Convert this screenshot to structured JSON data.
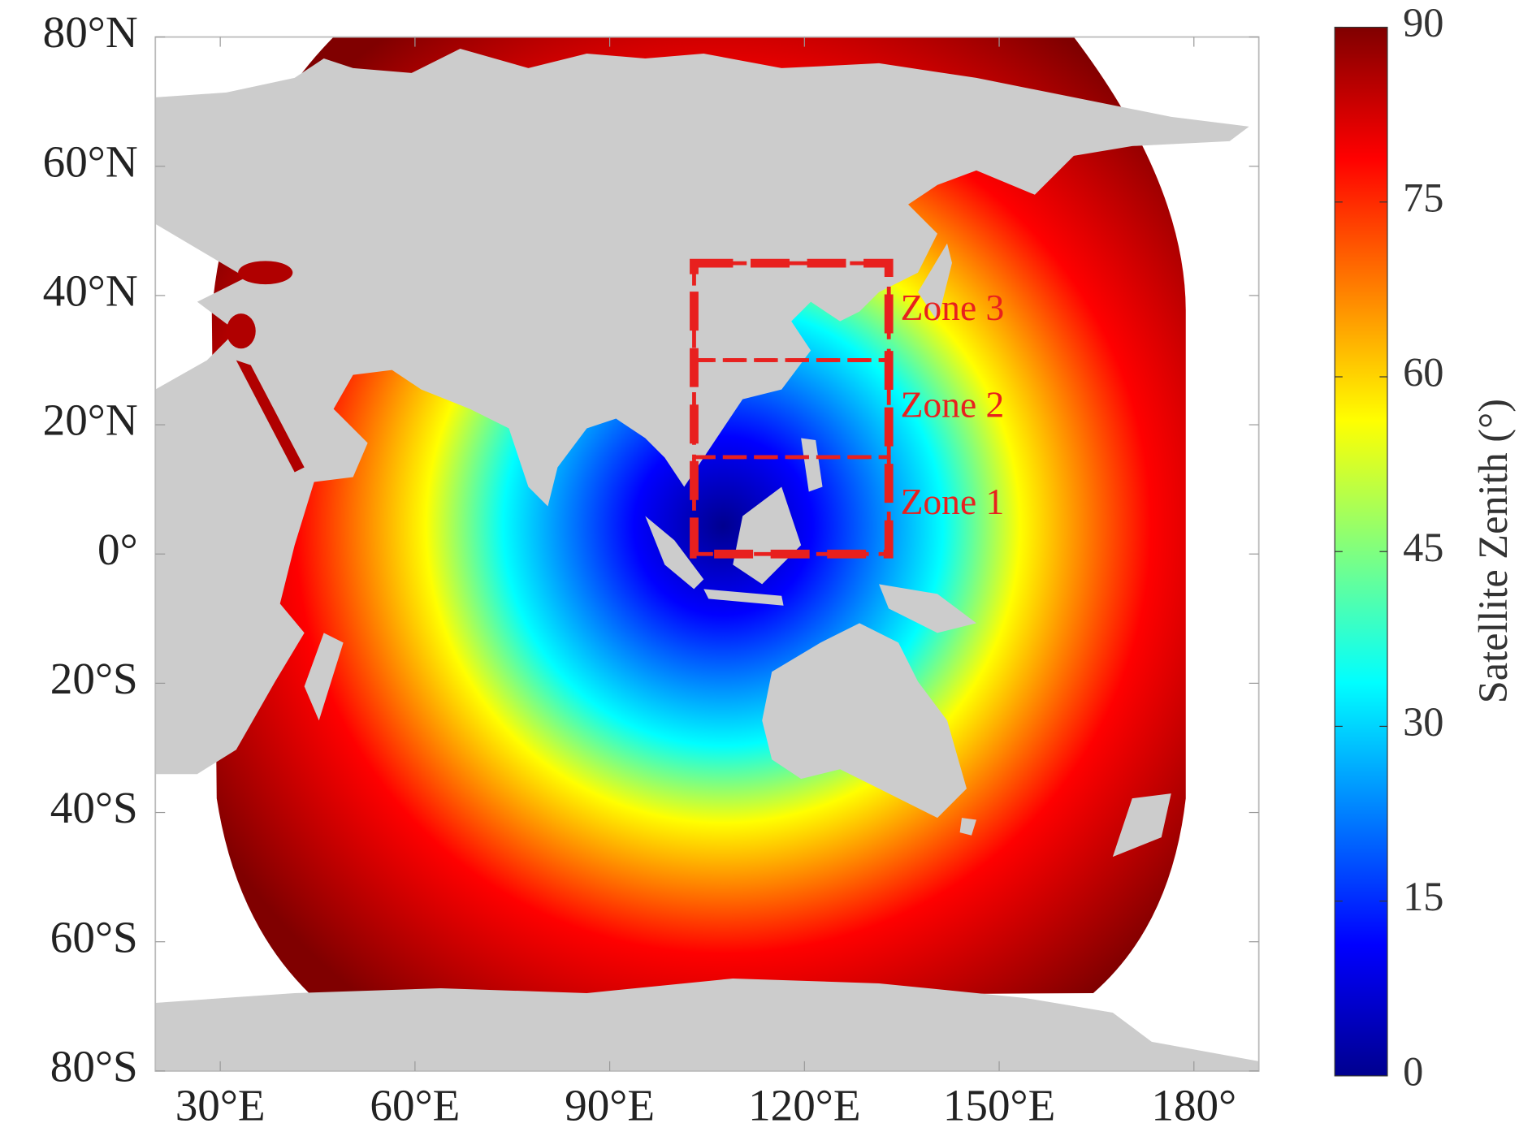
{
  "chart_data": {
    "type": "map",
    "xlim": [
      20,
      190
    ],
    "ylim": [
      -80,
      80
    ],
    "xticks": [
      {
        "value": 30,
        "label": "30°E"
      },
      {
        "value": 60,
        "label": "60°E"
      },
      {
        "value": 90,
        "label": "90°E"
      },
      {
        "value": 120,
        "label": "120°E"
      },
      {
        "value": 150,
        "label": "150°E"
      },
      {
        "value": 180,
        "label": "180°"
      }
    ],
    "yticks": [
      {
        "value": -80,
        "label": "80°S"
      },
      {
        "value": -60,
        "label": "60°S"
      },
      {
        "value": -40,
        "label": "40°S"
      },
      {
        "value": -20,
        "label": "20°S"
      },
      {
        "value": 0,
        "label": "0°"
      },
      {
        "value": 20,
        "label": "20°N"
      },
      {
        "value": 40,
        "label": "40°N"
      },
      {
        "value": 60,
        "label": "60°N"
      },
      {
        "value": 80,
        "label": "80°N"
      }
    ],
    "zones": [
      {
        "label": "Zone 1",
        "lon": [
          103,
          133
        ],
        "lat": [
          0,
          15
        ]
      },
      {
        "label": "Zone 2",
        "lon": [
          103,
          133
        ],
        "lat": [
          15,
          30
        ]
      },
      {
        "label": "Zone 3",
        "lon": [
          103,
          133
        ],
        "lat": [
          30,
          45
        ]
      }
    ],
    "zone_color": "#e8201e",
    "colorbar": {
      "label": "Satellite Zenith (°)",
      "lim": [
        0,
        90
      ],
      "ticks": [
        0,
        15,
        30,
        45,
        60,
        75,
        90
      ]
    }
  }
}
